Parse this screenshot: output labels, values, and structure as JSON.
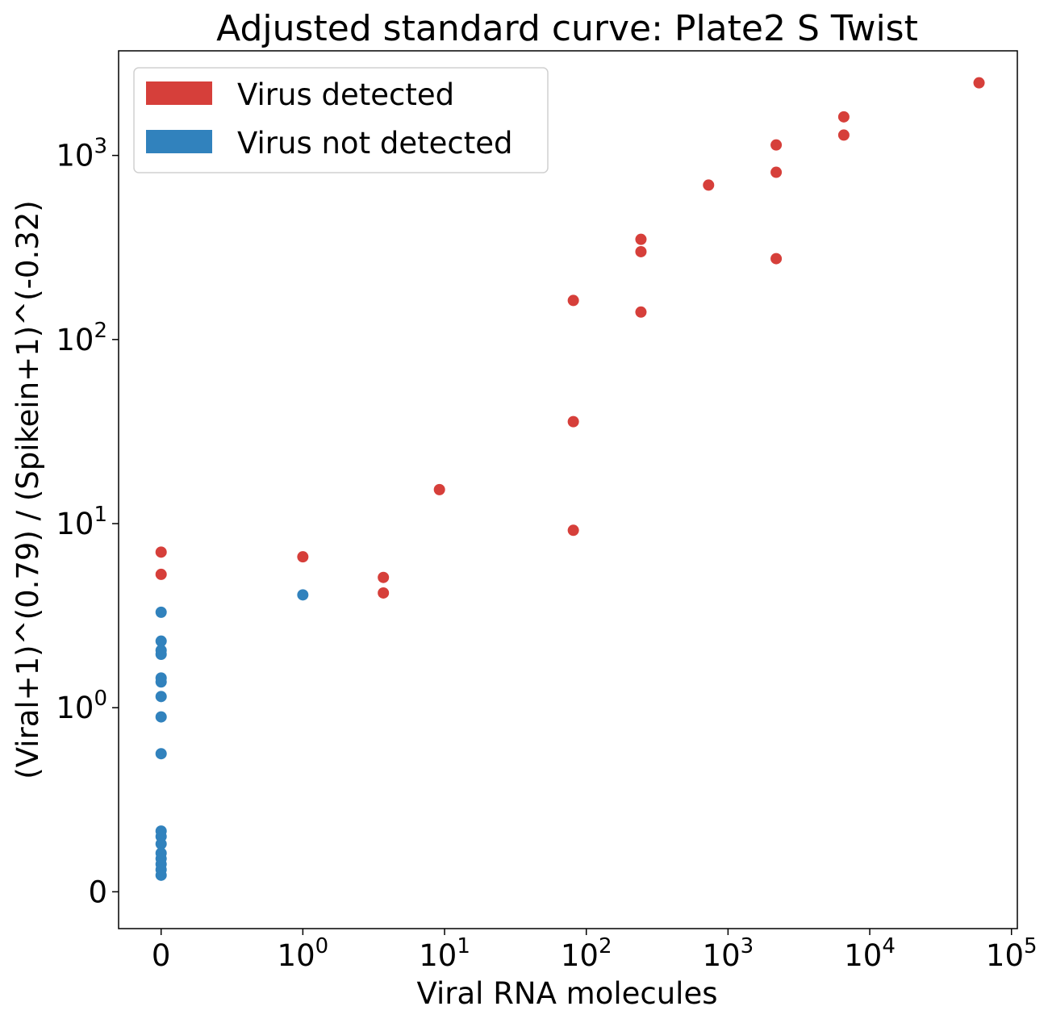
{
  "chart_data": {
    "type": "scatter",
    "title": "Adjusted standard curve: Plate2 S Twist",
    "xlabel": "Viral RNA molecules",
    "ylabel": "(Viral+1)^(0.79) / (Spikein+1)^(-0.32)",
    "x_scale": "symlog",
    "y_scale": "symlog",
    "xlim": [
      -0.3,
      110000
    ],
    "ylim": [
      -0.2,
      3700
    ],
    "x_ticks": [
      {
        "value": 0,
        "base": "0",
        "exp": ""
      },
      {
        "value": 1,
        "base": "10",
        "exp": "0"
      },
      {
        "value": 10,
        "base": "10",
        "exp": "1"
      },
      {
        "value": 100,
        "base": "10",
        "exp": "2"
      },
      {
        "value": 1000,
        "base": "10",
        "exp": "3"
      },
      {
        "value": 10000,
        "base": "10",
        "exp": "4"
      },
      {
        "value": 100000,
        "base": "10",
        "exp": "5"
      }
    ],
    "y_ticks": [
      {
        "value": 0,
        "base": "0",
        "exp": ""
      },
      {
        "value": 1,
        "base": "10",
        "exp": "0"
      },
      {
        "value": 10,
        "base": "10",
        "exp": "1"
      },
      {
        "value": 100,
        "base": "10",
        "exp": "2"
      },
      {
        "value": 1000,
        "base": "10",
        "exp": "3"
      }
    ],
    "legend_position": "top-left",
    "grid": false,
    "series": [
      {
        "name": "Virus detected",
        "color": "#d63f3a",
        "points": [
          {
            "x": 0,
            "y": 7.0
          },
          {
            "x": 0,
            "y": 5.3
          },
          {
            "x": 1,
            "y": 6.6
          },
          {
            "x": 3.7,
            "y": 5.1
          },
          {
            "x": 3.7,
            "y": 4.2
          },
          {
            "x": 9.2,
            "y": 15.3
          },
          {
            "x": 81,
            "y": 9.2
          },
          {
            "x": 81,
            "y": 35.8
          },
          {
            "x": 81,
            "y": 163
          },
          {
            "x": 243,
            "y": 350
          },
          {
            "x": 243,
            "y": 300
          },
          {
            "x": 243,
            "y": 141
          },
          {
            "x": 729,
            "y": 690
          },
          {
            "x": 2187,
            "y": 1140
          },
          {
            "x": 2187,
            "y": 810
          },
          {
            "x": 2187,
            "y": 275
          },
          {
            "x": 6561,
            "y": 1620
          },
          {
            "x": 6561,
            "y": 1290
          },
          {
            "x": 59049,
            "y": 2480
          }
        ]
      },
      {
        "name": "Virus not detected",
        "color": "#3182bd",
        "points": [
          {
            "x": 1,
            "y": 4.1
          },
          {
            "x": 0,
            "y": 3.3
          },
          {
            "x": 0,
            "y": 2.3
          },
          {
            "x": 0,
            "y": 2.05
          },
          {
            "x": 0,
            "y": 1.95
          },
          {
            "x": 0,
            "y": 1.45
          },
          {
            "x": 0,
            "y": 1.38
          },
          {
            "x": 0,
            "y": 1.15
          },
          {
            "x": 0,
            "y": 0.95
          },
          {
            "x": 0,
            "y": 0.75
          },
          {
            "x": 0,
            "y": 0.33
          },
          {
            "x": 0,
            "y": 0.3
          },
          {
            "x": 0,
            "y": 0.26
          },
          {
            "x": 0,
            "y": 0.21
          },
          {
            "x": 0,
            "y": 0.18
          },
          {
            "x": 0,
            "y": 0.15
          },
          {
            "x": 0,
            "y": 0.12
          },
          {
            "x": 0,
            "y": 0.09
          }
        ]
      }
    ]
  }
}
